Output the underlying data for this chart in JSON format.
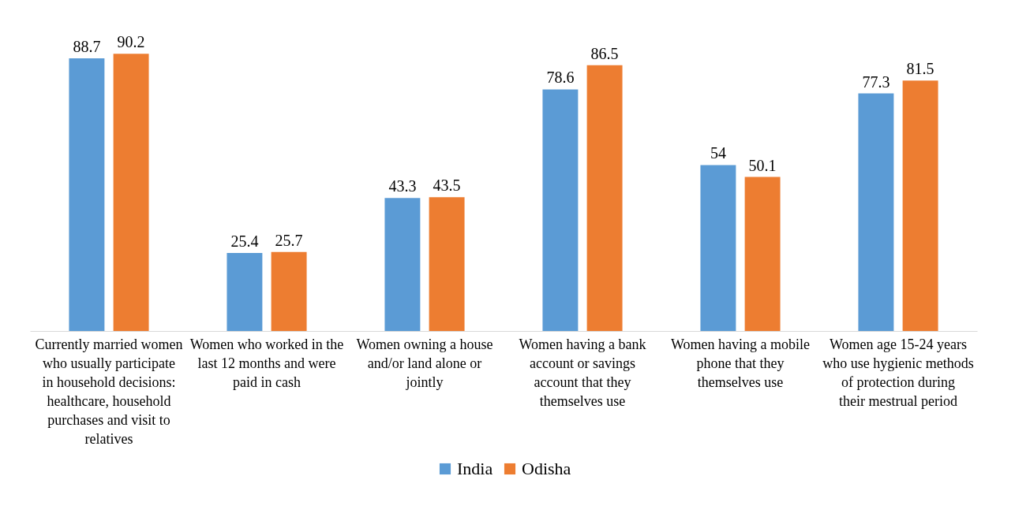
{
  "chart_data": {
    "type": "bar",
    "categories": [
      "Currently married women who usually participate in household decisions: healthcare, household purchases and visit to relatives",
      "Women who worked in the last 12 months and were paid in cash",
      "Women owning a house and/or land alone or jointly",
      "Women having a bank account or savings account that they themselves use",
      "Women having a mobile phone that they themselves use",
      "Women age 15-24 years who use hygienic methods of protection during their mestrual period"
    ],
    "series": [
      {
        "name": "India",
        "color": "#5b9bd5",
        "values": [
          88.7,
          25.4,
          43.3,
          78.6,
          54,
          77.3
        ]
      },
      {
        "name": "Odisha",
        "color": "#ed7d31",
        "values": [
          90.2,
          25.7,
          43.5,
          86.5,
          50.1,
          81.5
        ]
      }
    ],
    "data_labels": true,
    "legend": "bottom",
    "grid": false
  }
}
